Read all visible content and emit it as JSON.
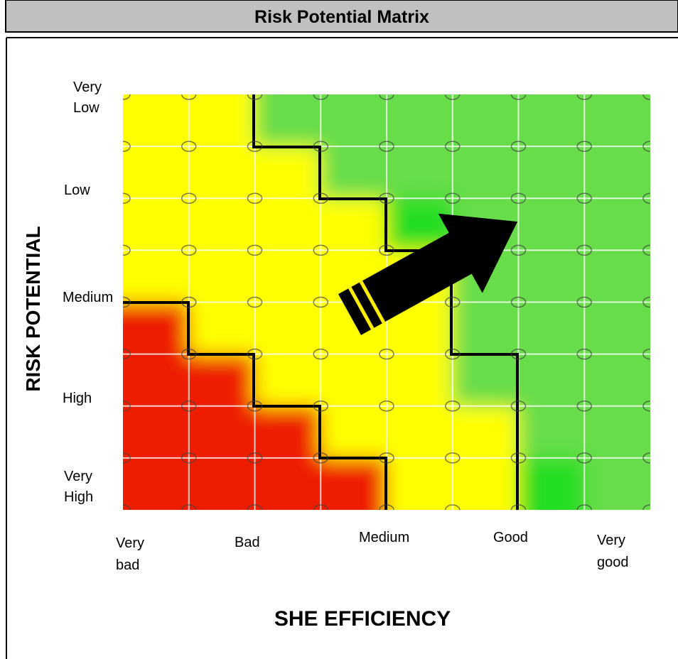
{
  "header": {
    "title": "Risk Potential Matrix"
  },
  "matrix": {
    "y_axis_title": "RISK POTENTIAL",
    "y_labels": [
      [
        "Very",
        "Low"
      ],
      [
        "Low"
      ],
      [
        "Medium"
      ],
      [
        "High"
      ],
      [
        "Very",
        "High"
      ]
    ],
    "x_axis_title": "SHE EFFICIENCY",
    "x_labels": [
      [
        "Very",
        "bad"
      ],
      [
        "Bad"
      ],
      [
        "Medium"
      ],
      [
        "Good"
      ],
      [
        "Very",
        "good"
      ]
    ]
  }
}
